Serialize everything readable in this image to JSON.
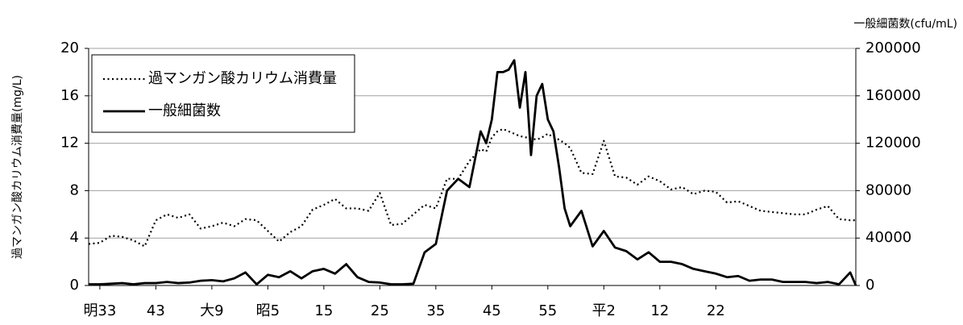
{
  "chart_data": {
    "type": "line",
    "y_label": "過マンガン酸カリウム消費量(mg/L)",
    "y2_label": "一般細菌数(cfu/mL)",
    "x": [
      0,
      2,
      4,
      6,
      8,
      10,
      12,
      14,
      16,
      18,
      20,
      22,
      24,
      26,
      28,
      30,
      32,
      34,
      36,
      38,
      40,
      42,
      44,
      46,
      48,
      50,
      52,
      54,
      56,
      58,
      60,
      62,
      64,
      66,
      68,
      70,
      71,
      72,
      73,
      74,
      75,
      76,
      77,
      78,
      79,
      80,
      81,
      82,
      83,
      84,
      85,
      86,
      88,
      90,
      92,
      94,
      96,
      98,
      100,
      102,
      104,
      106,
      108,
      110,
      112,
      114,
      116,
      118,
      120,
      122,
      124,
      126,
      128,
      130,
      132,
      134,
      136,
      137
    ],
    "xlim": [
      0,
      137
    ],
    "xticks": [
      {
        "value": 2,
        "label": "明33"
      },
      {
        "value": 12,
        "label": "43"
      },
      {
        "value": 22,
        "label": "大9"
      },
      {
        "value": 32,
        "label": "昭5"
      },
      {
        "value": 42,
        "label": "15"
      },
      {
        "value": 52,
        "label": "25"
      },
      {
        "value": 62,
        "label": "35"
      },
      {
        "value": 72,
        "label": "45"
      },
      {
        "value": 82,
        "label": "55"
      },
      {
        "value": 92,
        "label": "平2"
      },
      {
        "value": 102,
        "label": "12"
      },
      {
        "value": 112,
        "label": "22"
      }
    ],
    "ylim": [
      0,
      20
    ],
    "yticks": [
      0,
      4,
      8,
      12,
      16,
      20
    ],
    "y2lim": [
      0,
      200000
    ],
    "y2ticks": [
      0,
      40000,
      80000,
      120000,
      160000,
      200000
    ],
    "grid": true,
    "legend": "upper left",
    "series": [
      {
        "name": "過マンガン酸カリウム消費量",
        "color": "#000000",
        "style": "dotted",
        "values": [
          3.5,
          3.6,
          4.2,
          4.1,
          3.8,
          3.3,
          5.5,
          6.0,
          5.7,
          6.0,
          4.8,
          5.0,
          5.3,
          5.0,
          5.6,
          5.5,
          4.6,
          3.7,
          4.5,
          5.0,
          6.4,
          6.8,
          7.3,
          6.5,
          6.5,
          6.3,
          7.8,
          5.1,
          5.2,
          6.0,
          6.8,
          6.5,
          9.0,
          9.0,
          10.5,
          11.5,
          11.3,
          12.5,
          13.0,
          13.2,
          13.0,
          12.8,
          12.6,
          12.5,
          12.4,
          12.3,
          12.5,
          12.8,
          12.5,
          12.3,
          12.0,
          11.6,
          9.5,
          9.4,
          12.2,
          9.2,
          9.1,
          8.5,
          9.2,
          8.8,
          8.1,
          8.3,
          7.7,
          8.0,
          7.9,
          7.0,
          7.1,
          6.7,
          6.3,
          6.2,
          6.1,
          6.0,
          6.0,
          6.4,
          6.7,
          5.6,
          5.5,
          5.5
        ]
      },
      {
        "name": "一般細菌数",
        "color": "#000000",
        "style": "solid",
        "axis": "y2",
        "values": [
          1000,
          1000,
          1500,
          2000,
          1000,
          2000,
          2000,
          3000,
          2000,
          2500,
          4000,
          4500,
          3500,
          6000,
          11000,
          1000,
          9000,
          7000,
          12000,
          6000,
          12000,
          14000,
          10000,
          18000,
          7000,
          3000,
          2500,
          1000,
          1000,
          1500,
          28000,
          35000,
          80000,
          90000,
          83000,
          130000,
          120000,
          140000,
          180000,
          180000,
          182000,
          190000,
          150000,
          180000,
          110000,
          160000,
          170000,
          140000,
          130000,
          100000,
          65000,
          50000,
          63000,
          33000,
          46000,
          32000,
          29000,
          22000,
          28000,
          20000,
          20000,
          18000,
          14000,
          12000,
          10000,
          7000,
          8000,
          4000,
          5000,
          5000,
          3000,
          3000,
          3000,
          2000,
          3000,
          1000,
          11000,
          0
        ]
      }
    ]
  }
}
